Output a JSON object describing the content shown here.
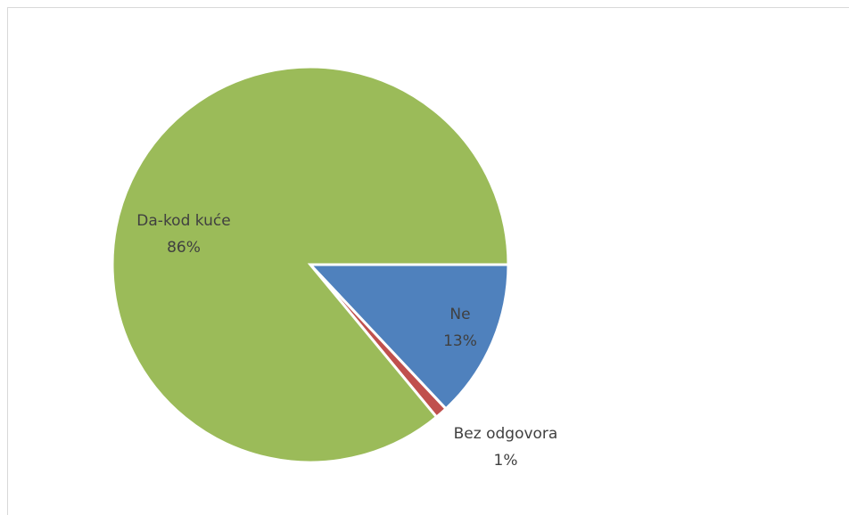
{
  "chart_data": {
    "type": "pie",
    "title": "",
    "series": [
      {
        "name": "Da-kod kuće",
        "value": 86,
        "label": "86%",
        "color": "#9bbb59"
      },
      {
        "name": "Ne",
        "value": 13,
        "label": "13%",
        "color": "#4f81bd"
      },
      {
        "name": "Bez odgovora",
        "value": 1,
        "label": "1%",
        "color": "#c0504d"
      }
    ],
    "legend": "none"
  }
}
